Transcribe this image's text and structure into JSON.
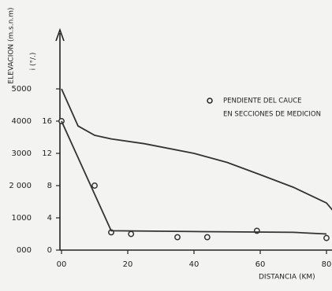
{
  "chart_data": {
    "type": "line",
    "y_label": "ELEVACION (m.s.n.m)",
    "y2_label": "i (°/.)",
    "x_label": "DISTANCIA (KM)",
    "annotation": [
      "PENDIENTE DEL CAUCE",
      "EN SECCIONES DE MEDICION"
    ],
    "xlim": [
      0,
      82
    ],
    "xticks": [
      {
        "value": 0,
        "label": "00"
      },
      20,
      40,
      60,
      80
    ],
    "ylim": [
      0,
      6500
    ],
    "yticks": [
      {
        "value": 0,
        "label": "000"
      },
      1000,
      {
        "value": 2000,
        "label": "2 000"
      },
      3000,
      4000,
      5000
    ],
    "y2lim": [
      0,
      26
    ],
    "y2ticks": [
      0,
      4,
      8,
      12,
      16
    ],
    "series": [
      {
        "color": "#333333",
        "x": [
          0,
          5,
          10,
          15,
          25,
          40,
          50,
          60,
          70,
          80,
          82
        ],
        "values": [
          5000,
          3850,
          3560,
          3450,
          3300,
          3000,
          2720,
          2340,
          1950,
          1460,
          1220
        ]
      },
      {
        "color": "#333333",
        "axis": "y2",
        "marker": "circle",
        "x": [
          0,
          10,
          15,
          21,
          35,
          44,
          59,
          80
        ],
        "values": [
          16,
          8,
          2.2,
          2.0,
          1.6,
          1.6,
          2.4,
          1.5
        ]
      },
      {
        "color": "#333333",
        "axis": "y2",
        "x": [
          0,
          15,
          40,
          70,
          80
        ],
        "values": [
          16,
          2.4,
          2.3,
          2.2,
          2.0
        ]
      }
    ]
  }
}
